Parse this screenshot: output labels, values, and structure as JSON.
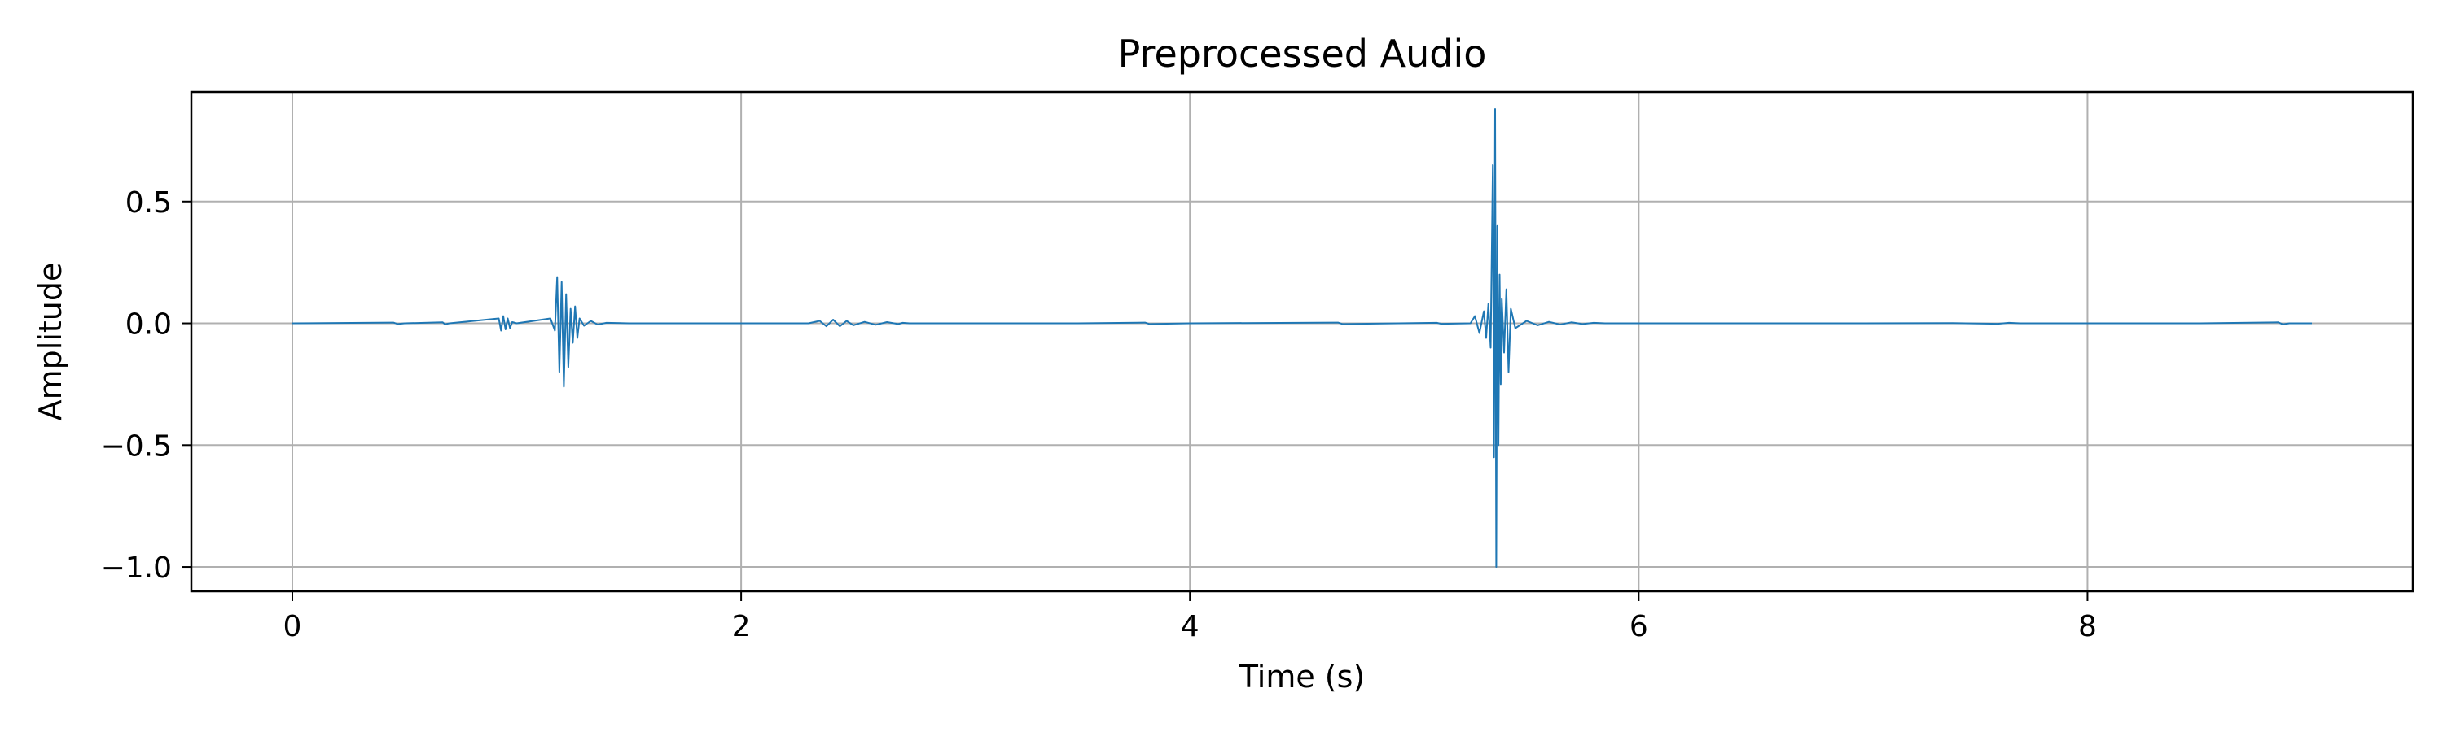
{
  "chart_data": {
    "type": "line",
    "title": "Preprocessed Audio",
    "xlabel": "Time (s)",
    "ylabel": "Amplitude",
    "xlim": [
      -0.45,
      9.45
    ],
    "ylim": [
      -1.1,
      0.95
    ],
    "xticks": [
      0,
      2,
      4,
      6,
      8
    ],
    "xtick_labels": [
      "0",
      "2",
      "4",
      "6",
      "8"
    ],
    "yticks": [
      0.5,
      0.0,
      -0.5,
      -1.0
    ],
    "ytick_labels": [
      "0.5",
      "0.0",
      "−0.5",
      "−1.0"
    ],
    "grid": true,
    "line_color": "#1f77b4",
    "series": [
      {
        "x": [
          0.0,
          0.45,
          0.47,
          0.5,
          0.67,
          0.68,
          0.7,
          0.92,
          0.93,
          0.94,
          0.95,
          0.96,
          0.97,
          0.98,
          1.0,
          1.15,
          1.17,
          1.18,
          1.19,
          1.2,
          1.21,
          1.22,
          1.23,
          1.24,
          1.25,
          1.26,
          1.27,
          1.28,
          1.3,
          1.33,
          1.36,
          1.4,
          1.5,
          1.9,
          2.3,
          2.35,
          2.38,
          2.41,
          2.44,
          2.47,
          2.5,
          2.55,
          2.6,
          2.65,
          2.7,
          2.72,
          2.75,
          3.0,
          3.5,
          3.8,
          3.82,
          4.0,
          4.66,
          4.68,
          5.1,
          5.12,
          5.25,
          5.27,
          5.29,
          5.31,
          5.32,
          5.33,
          5.34,
          5.35,
          5.355,
          5.36,
          5.365,
          5.37,
          5.375,
          5.38,
          5.385,
          5.39,
          5.4,
          5.41,
          5.42,
          5.43,
          5.45,
          5.5,
          5.55,
          5.6,
          5.65,
          5.7,
          5.75,
          5.8,
          5.85,
          6.0,
          7.0,
          7.4,
          7.6,
          7.65,
          7.7,
          8.0,
          8.5,
          8.85,
          8.87,
          8.9,
          9.0
        ],
        "y": [
          0.0,
          0.003,
          -0.003,
          0.0,
          0.004,
          -0.004,
          0.0,
          0.02,
          -0.03,
          0.03,
          -0.025,
          0.02,
          -0.02,
          0.005,
          0.0,
          0.02,
          -0.03,
          0.19,
          -0.2,
          0.17,
          -0.26,
          0.12,
          -0.18,
          0.06,
          -0.08,
          0.07,
          -0.06,
          0.02,
          -0.01,
          0.01,
          -0.005,
          0.002,
          0.0,
          0.0,
          0.0,
          0.01,
          -0.012,
          0.015,
          -0.012,
          0.01,
          -0.008,
          0.006,
          -0.006,
          0.005,
          -0.003,
          0.002,
          0.0,
          0.0,
          0.0,
          0.003,
          -0.003,
          0.0,
          0.003,
          -0.003,
          0.002,
          -0.002,
          0.0,
          0.03,
          -0.04,
          0.05,
          -0.06,
          0.08,
          -0.1,
          0.65,
          -0.55,
          0.88,
          -1.0,
          0.4,
          -0.5,
          0.2,
          -0.25,
          0.1,
          -0.12,
          0.14,
          -0.2,
          0.06,
          -0.02,
          0.01,
          -0.008,
          0.006,
          -0.005,
          0.004,
          -0.003,
          0.002,
          0.0,
          0.0,
          0.0,
          0.001,
          -0.002,
          0.002,
          0.0,
          0.0,
          0.0,
          0.004,
          -0.004,
          0.0,
          0.0
        ]
      }
    ]
  }
}
